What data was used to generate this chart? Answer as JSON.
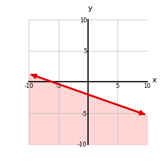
{
  "title": "",
  "xlabel": "x",
  "ylabel": "y",
  "xlim": [
    -10,
    10
  ],
  "ylim": [
    -10,
    10
  ],
  "xticks": [
    -10,
    -5,
    0,
    5,
    10
  ],
  "yticks": [
    -10,
    -5,
    0,
    5,
    10
  ],
  "slope": -0.3333333333,
  "intercept": -2,
  "line_color": "#dd0000",
  "shade_color": "#ffbbbb",
  "shade_alpha": 0.6,
  "line_width": 2.0,
  "background_color": "#ffffff",
  "grid_color": "#bbbbbb"
}
